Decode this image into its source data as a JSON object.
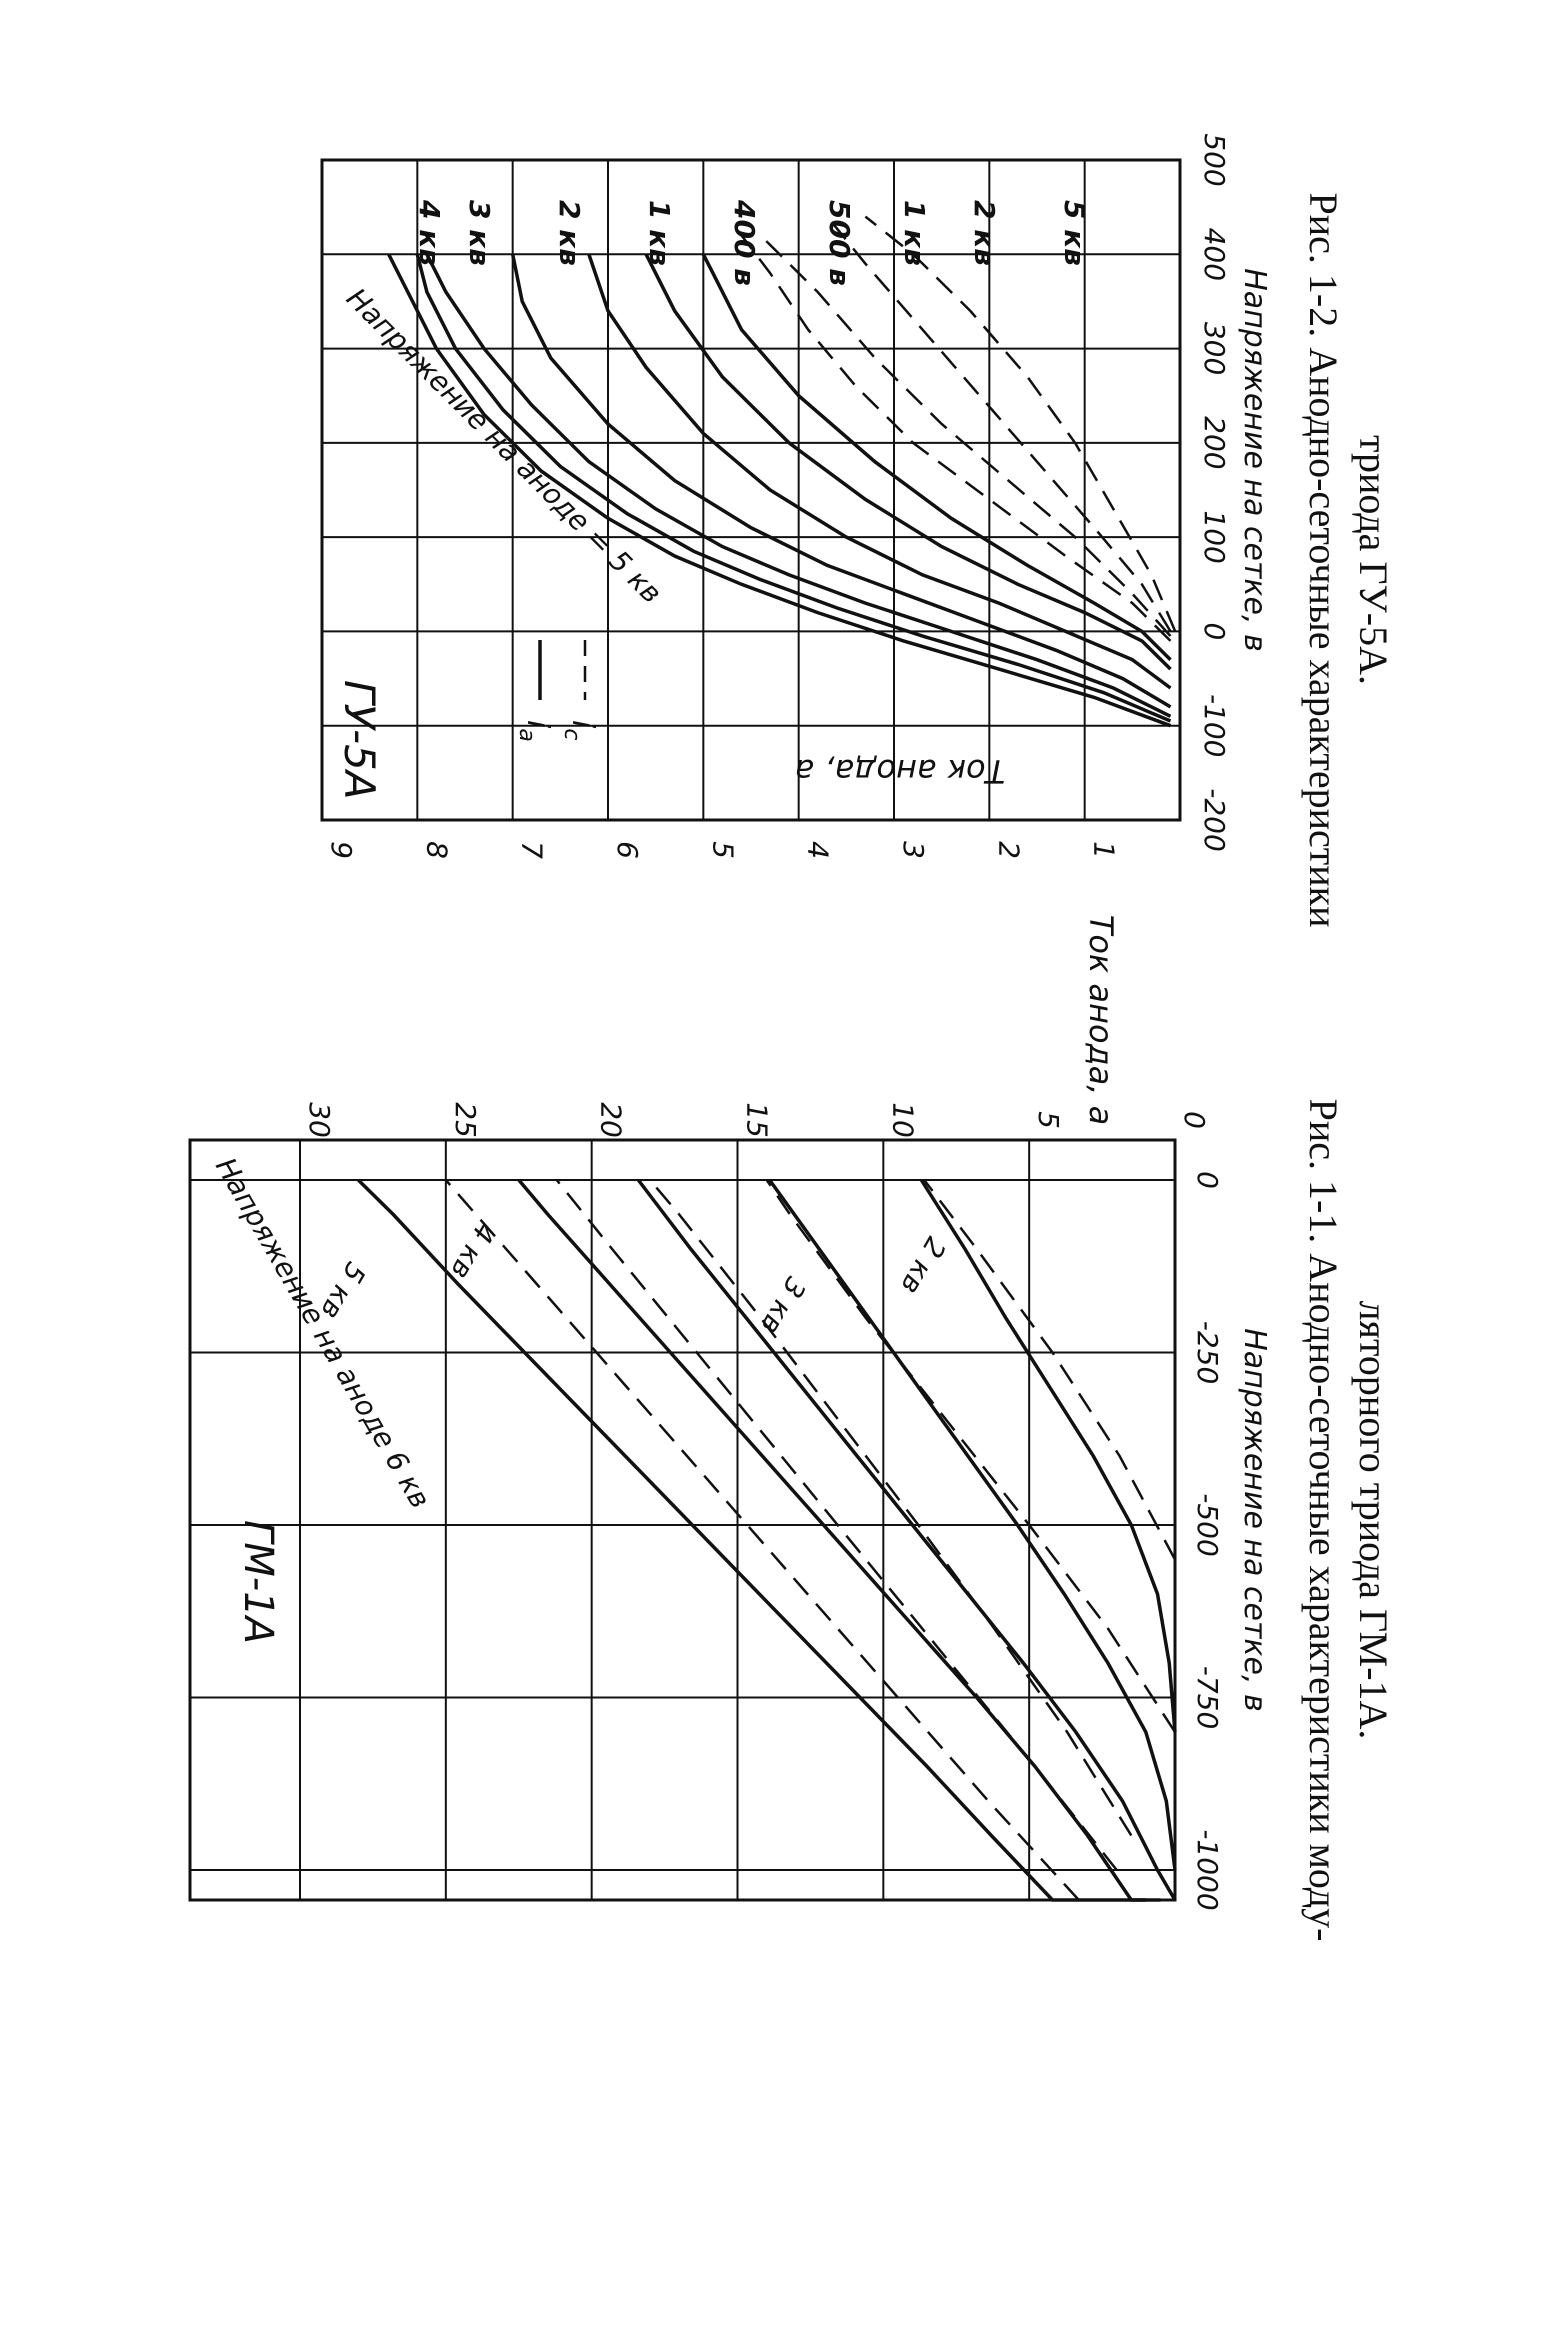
{
  "chart_data": [
    {
      "id": "fig_1_1",
      "type": "line",
      "panel_label": "ГМ-1А",
      "caption_line1": "Рис. 1-1. Анодно-сеточные характеристики моду-",
      "caption_line2": "ляторного триода ГМ-1А.",
      "xlabel": "Напряжение на сетке, в",
      "ylabel": "Ток анода, а",
      "xlim": [
        -1250,
        0
      ],
      "ylim": [
        0,
        30
      ],
      "x_tick_labels": [
        "-1000",
        "-750",
        "-500",
        "-250",
        "0"
      ],
      "x_tick_values": [
        -1000,
        -750,
        -500,
        -250,
        0
      ],
      "y_tick_labels": [
        "0",
        "5",
        "10",
        "15",
        "20",
        "25",
        "30"
      ],
      "y_tick_values": [
        0,
        5,
        10,
        15,
        20,
        25,
        30
      ],
      "curve_prefix_label": "Напряжение на аноде 6 кв",
      "series": [
        {
          "name": "2 кв",
          "style": "solid",
          "x": [
            -800,
            -700,
            -600,
            -500,
            -400,
            -300,
            -200,
            -100,
            0
          ],
          "y": [
            0,
            0.2,
            0.6,
            1.5,
            2.8,
            4.3,
            5.8,
            7.2,
            8.7
          ]
        },
        {
          "name": "2 кв",
          "style": "dashed",
          "x": [
            -550,
            -400,
            -250,
            -100,
            0
          ],
          "y": [
            0,
            1.9,
            4.2,
            6.8,
            8.6
          ]
        },
        {
          "name": "3 кв",
          "style": "solid",
          "x": [
            -1000,
            -900,
            -800,
            -700,
            -600,
            -500,
            -400,
            -300,
            -200,
            -100,
            0
          ],
          "y": [
            0,
            0.3,
            1.0,
            2.3,
            3.8,
            5.4,
            7.1,
            8.8,
            10.5,
            12.2,
            13.9
          ]
        },
        {
          "name": "3 кв",
          "style": "dashed",
          "x": [
            -800,
            -650,
            -500,
            -350,
            -200,
            -50,
            0
          ],
          "y": [
            0,
            2.3,
            5.0,
            7.8,
            10.6,
            13.2,
            14.0
          ]
        },
        {
          "name": "4 кв",
          "style": "solid",
          "x": [
            -1100,
            -1000,
            -900,
            -800,
            -700,
            -600,
            -500,
            -400,
            -300,
            -200,
            -100,
            0
          ],
          "y": [
            0,
            0.6,
            1.8,
            3.4,
            5.2,
            7.1,
            9.0,
            10.9,
            12.8,
            14.7,
            16.6,
            18.4
          ]
        },
        {
          "name": "4 кв",
          "style": "dashed",
          "x": [
            -950,
            -800,
            -650,
            -500,
            -350,
            -200,
            -50,
            0
          ],
          "y": [
            1.5,
            3.7,
            6.2,
            8.8,
            11.5,
            14.2,
            17.0,
            18.0
          ]
        },
        {
          "name": "5 кв",
          "style": "solid",
          "x": [
            -1150,
            -1050,
            -950,
            -850,
            -750,
            -650,
            -550,
            -450,
            -350,
            -250,
            -150,
            -50,
            0
          ],
          "y": [
            0.5,
            1.5,
            3.0,
            4.8,
            6.8,
            8.9,
            11.0,
            13.1,
            15.2,
            17.3,
            19.4,
            21.5,
            22.5
          ]
        },
        {
          "name": "5 кв",
          "style": "dashed",
          "x": [
            -1000,
            -850,
            -700,
            -550,
            -400,
            -250,
            -100,
            0
          ],
          "y": [
            2.0,
            4.8,
            7.7,
            10.6,
            13.5,
            16.4,
            19.3,
            21.2
          ]
        },
        {
          "name": "6 кв",
          "style": "solid",
          "x": [
            -1250,
            -1150,
            -1050,
            -950,
            -850,
            -750,
            -650,
            -550,
            -450,
            -350,
            -250,
            -150,
            -50,
            0
          ],
          "y": [
            1.0,
            2.4,
            4.2,
            6.3,
            8.5,
            10.8,
            13.1,
            15.4,
            17.7,
            20.0,
            22.3,
            24.6,
            26.8,
            28.0
          ]
        },
        {
          "name": "6 кв",
          "style": "dashed",
          "x": [
            -1050,
            -900,
            -750,
            -600,
            -450,
            -300,
            -150,
            0
          ],
          "y": [
            3.3,
            6.4,
            9.5,
            12.6,
            15.7,
            18.8,
            21.9,
            25.0
          ]
        }
      ]
    },
    {
      "id": "fig_1_2",
      "type": "line",
      "panel_label": "ГУ-5А",
      "caption_line1": "Рис. 1-2. Анодно-сеточные характеристики",
      "caption_line2": "триода ГУ-5А.",
      "xlabel": "Напряжение на сетке, в",
      "ylabel": "Ток анода, а",
      "xlim": [
        -200,
        500
      ],
      "ylim": [
        0,
        9
      ],
      "x_tick_labels": [
        "-200",
        "-100",
        "0",
        "100",
        "200",
        "300",
        "400",
        "500"
      ],
      "x_tick_values": [
        -200,
        -100,
        0,
        100,
        200,
        300,
        400,
        500
      ],
      "y_tick_labels": [
        "1",
        "2",
        "3",
        "4",
        "5",
        "6",
        "7",
        "8",
        "9"
      ],
      "y_tick_values": [
        1,
        2,
        3,
        4,
        5,
        6,
        7,
        8,
        9
      ],
      "curve_prefix_label": "Напряжение на аноде = 5 кв",
      "legend": [
        {
          "label_main": "i",
          "label_sub": "a",
          "style": "solid"
        },
        {
          "label_main": "i",
          "label_sub": "c",
          "style": "dashed"
        }
      ],
      "series": [
        {
          "name": "5 кв",
          "style": "solid",
          "x": [
            -100,
            -70,
            -40,
            -10,
            20,
            50,
            80,
            120,
            170,
            230,
            300,
            360,
            400
          ],
          "y": [
            0.1,
            0.9,
            1.9,
            2.9,
            3.8,
            4.6,
            5.3,
            6.0,
            6.7,
            7.3,
            7.8,
            8.1,
            8.3
          ]
        },
        {
          "name": "4 кв",
          "style": "solid",
          "x": [
            -95,
            -65,
            -35,
            -5,
            25,
            55,
            85,
            125,
            175,
            235,
            300,
            360,
            400
          ],
          "y": [
            0.1,
            0.8,
            1.7,
            2.7,
            3.6,
            4.4,
            5.1,
            5.8,
            6.5,
            7.1,
            7.6,
            7.9,
            8.0
          ]
        },
        {
          "name": "3 кв",
          "style": "solid",
          "x": [
            -90,
            -60,
            -30,
            0,
            30,
            60,
            90,
            130,
            180,
            240,
            300,
            360,
            400
          ],
          "y": [
            0.1,
            0.7,
            1.5,
            2.4,
            3.3,
            4.1,
            4.8,
            5.5,
            6.2,
            6.8,
            7.3,
            7.7,
            7.9
          ]
        },
        {
          "name": "2 кв",
          "style": "solid",
          "x": [
            -80,
            -50,
            -20,
            10,
            40,
            70,
            110,
            160,
            220,
            290,
            350,
            400
          ],
          "y": [
            0.1,
            0.6,
            1.3,
            2.1,
            2.9,
            3.7,
            4.5,
            5.3,
            6.0,
            6.6,
            6.9,
            7.0
          ]
        },
        {
          "name": "1 кв",
          "style": "solid",
          "x": [
            -60,
            -30,
            0,
            30,
            60,
            100,
            150,
            210,
            280,
            340,
            400
          ],
          "y": [
            0.1,
            0.5,
            1.2,
            1.9,
            2.7,
            3.5,
            4.3,
            5.0,
            5.6,
            6.0,
            6.2
          ]
        },
        {
          "name": "400 в",
          "style": "solid",
          "x": [
            -40,
            -10,
            20,
            50,
            90,
            140,
            200,
            270,
            340,
            400
          ],
          "y": [
            0.1,
            0.4,
            1.0,
            1.7,
            2.5,
            3.3,
            4.1,
            4.8,
            5.3,
            5.6
          ]
        },
        {
          "name": "500 в",
          "style": "solid",
          "x": [
            -30,
            0,
            30,
            70,
            120,
            180,
            250,
            320,
            380,
            400
          ],
          "y": [
            0.1,
            0.4,
            0.9,
            1.6,
            2.4,
            3.2,
            4.0,
            4.6,
            4.9,
            5.0
          ]
        },
        {
          "name": "500 в",
          "style": "dashed",
          "x": [
            -10,
            30,
            80,
            140,
            200,
            260,
            320,
            380,
            420
          ],
          "y": [
            0.1,
            0.5,
            1.2,
            2.0,
            2.8,
            3.4,
            3.9,
            4.3,
            4.6
          ]
        },
        {
          "name": "1 кв",
          "style": "dashed",
          "x": [
            -5,
            40,
            100,
            160,
            220,
            290,
            360,
            420
          ],
          "y": [
            0.1,
            0.5,
            1.1,
            1.8,
            2.5,
            3.2,
            3.8,
            4.4
          ]
        },
        {
          "name": "2 кв",
          "style": "dashed",
          "x": [
            0,
            50,
            110,
            180,
            250,
            320,
            390,
            440
          ],
          "y": [
            0.1,
            0.4,
            0.9,
            1.5,
            2.1,
            2.7,
            3.3,
            3.7
          ]
        },
        {
          "name": "5 кв",
          "style": "dashed",
          "x": [
            0,
            60,
            130,
            200,
            270,
            340,
            400,
            440
          ],
          "y": [
            0.05,
            0.3,
            0.7,
            1.1,
            1.6,
            2.2,
            2.8,
            3.3
          ]
        }
      ]
    }
  ]
}
